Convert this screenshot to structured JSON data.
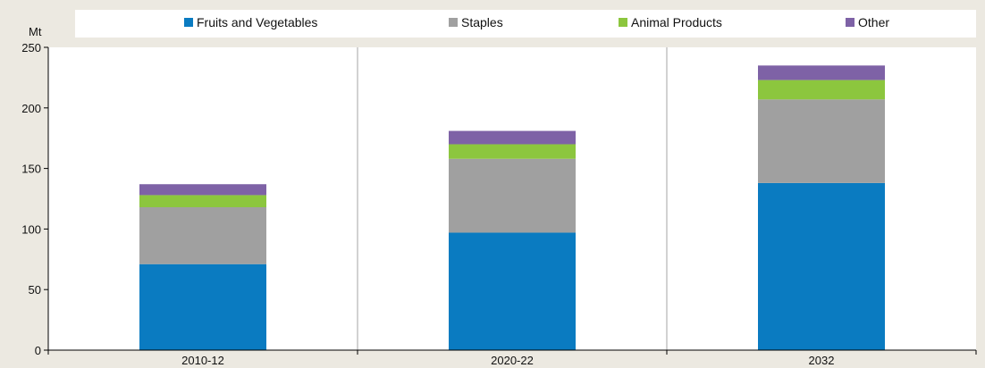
{
  "chart_data": {
    "type": "bar",
    "stacked": true,
    "categories": [
      "2010-12",
      "2020-22",
      "2032"
    ],
    "series": [
      {
        "name": "Fruits and Vegetables",
        "color": "#0a7bc1",
        "values": [
          71,
          97,
          138
        ]
      },
      {
        "name": "Staples",
        "color": "#a0a0a0",
        "values": [
          47,
          61,
          69
        ]
      },
      {
        "name": "Animal Products",
        "color": "#8cc63e",
        "values": [
          10,
          12,
          16
        ]
      },
      {
        "name": "Other",
        "color": "#7e62a6",
        "values": [
          9,
          11,
          12
        ]
      }
    ],
    "title": "",
    "xlabel": "",
    "ylabel": "Mt",
    "ylim": [
      0,
      250
    ],
    "yticks": [
      0,
      50,
      100,
      150,
      200,
      250
    ],
    "grid": "vertical category separators",
    "legend_position": "top"
  }
}
